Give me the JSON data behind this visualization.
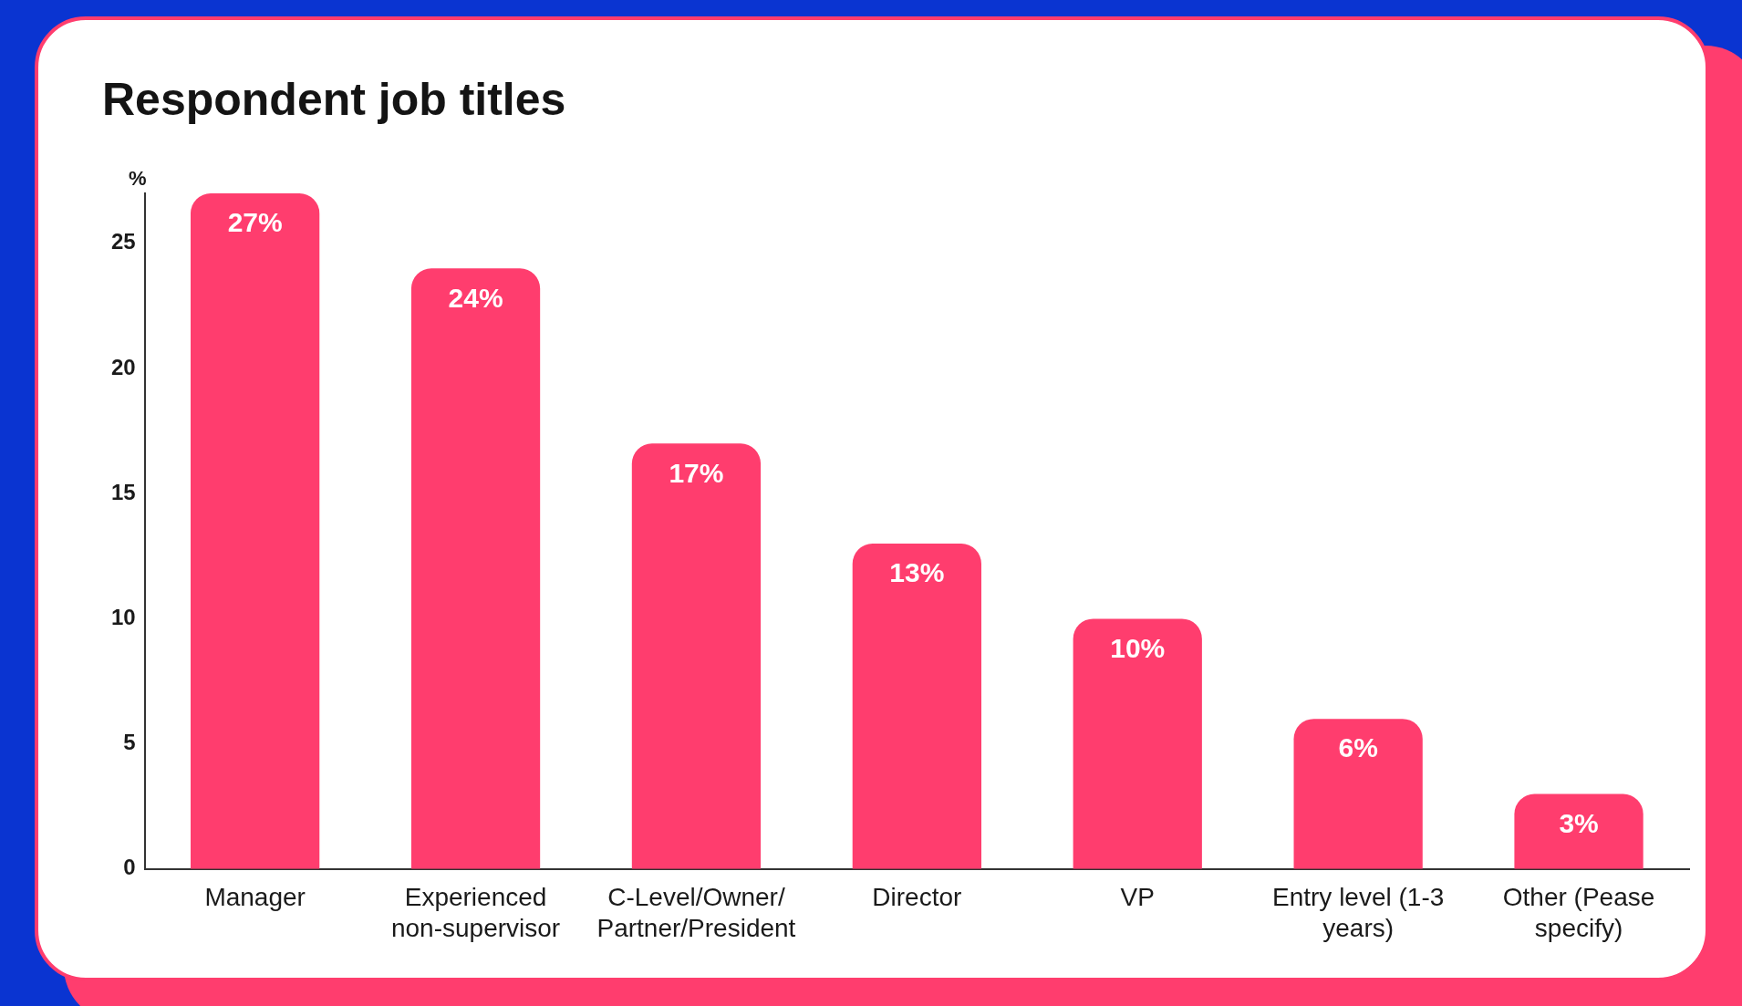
{
  "chart_data": {
    "type": "bar",
    "title": "Respondent job titles",
    "ylabel": "%",
    "categories": [
      "Manager",
      "Experienced non-supervisor",
      "C-Level/Owner/Partner/President",
      "Director",
      "VP",
      "Entry level (1-3 years)",
      "Other (Pease specify)"
    ],
    "values": [
      27,
      24,
      17,
      13,
      10,
      6,
      3
    ],
    "value_labels": [
      "27%",
      "24%",
      "17%",
      "13%",
      "10%",
      "6%",
      "3%"
    ],
    "color": "#ff3d6e",
    "ylim": [
      0,
      27
    ],
    "yticks": [
      0,
      5,
      10,
      15,
      20,
      25
    ],
    "grid": false,
    "legend": false
  }
}
